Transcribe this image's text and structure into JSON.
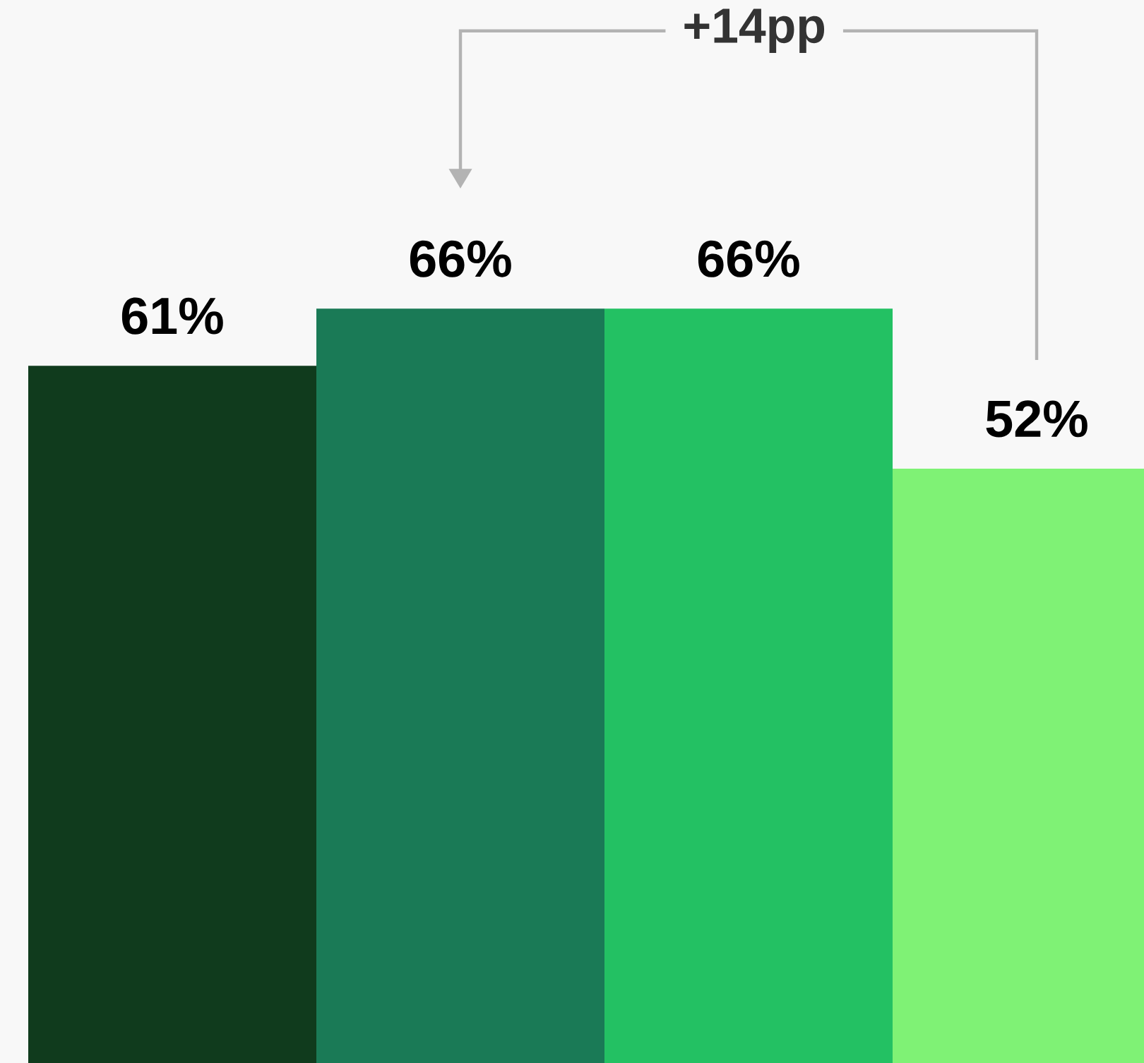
{
  "chart_data": {
    "type": "bar",
    "categories": [
      null,
      null,
      null,
      null
    ],
    "values": [
      61,
      66,
      66,
      52
    ],
    "colors": [
      "#103b1d",
      "#1a7a56",
      "#23c163",
      "#7ff275"
    ],
    "value_labels": [
      "61%",
      "66%",
      "66%",
      "52%"
    ],
    "ylim": [
      0,
      93
    ],
    "annotations": [
      "+14pp"
    ]
  }
}
